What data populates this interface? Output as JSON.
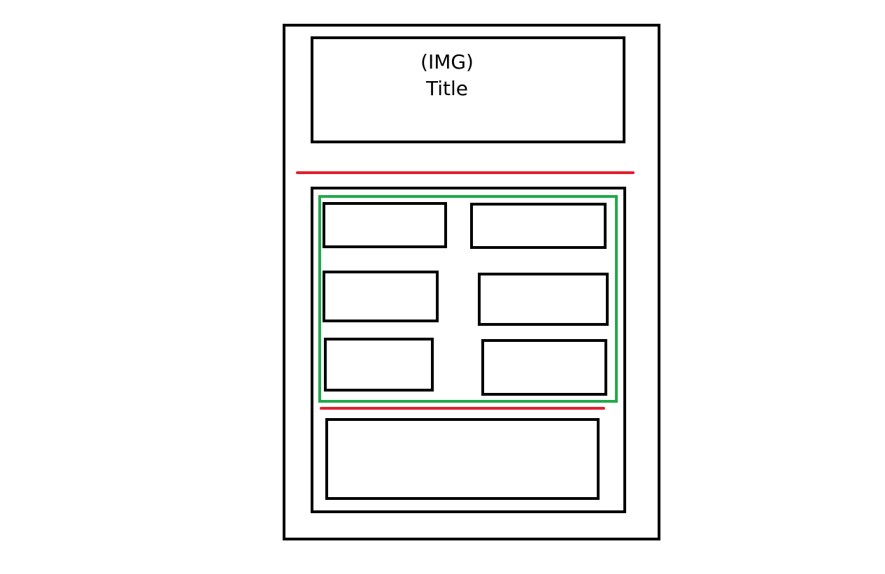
{
  "header": {
    "image_placeholder": "(IMG)",
    "title": "Title"
  },
  "colors": {
    "outline": "#000000",
    "separator": "#e0202e",
    "grid_group": "#22a94b",
    "background": "#ffffff"
  }
}
